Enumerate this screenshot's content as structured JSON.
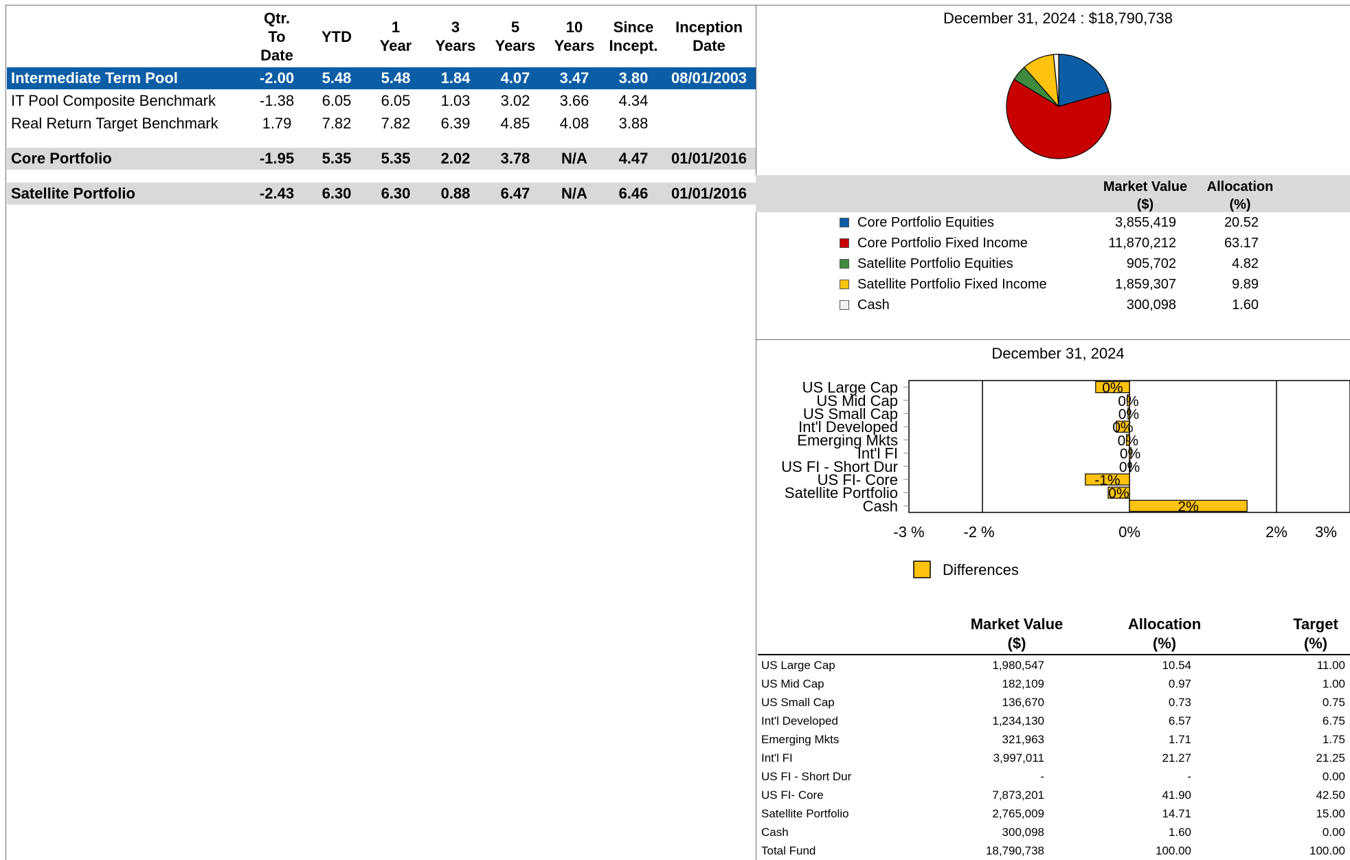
{
  "performance": {
    "headers": [
      {
        "lines": [
          "Qtr.",
          "To",
          "Date"
        ]
      },
      {
        "lines": [
          "YTD"
        ]
      },
      {
        "lines": [
          "1",
          "Year"
        ]
      },
      {
        "lines": [
          "3",
          "Years"
        ]
      },
      {
        "lines": [
          "5",
          "Years"
        ]
      },
      {
        "lines": [
          "10",
          "Years"
        ]
      },
      {
        "lines": [
          "Since",
          "Incept."
        ]
      },
      {
        "lines": [
          "Inception",
          "Date"
        ]
      }
    ],
    "rows": [
      {
        "name": "Intermediate Term Pool",
        "values": [
          "-2.00",
          "5.48",
          "5.48",
          "1.84",
          "4.07",
          "3.47",
          "3.80",
          "08/01/2003"
        ],
        "style": "pool"
      },
      {
        "name": "IT Pool Composite Benchmark",
        "values": [
          "-1.38",
          "6.05",
          "6.05",
          "1.03",
          "3.02",
          "3.66",
          "4.34",
          ""
        ],
        "style": "plain"
      },
      {
        "name": "Real Return Target Benchmark",
        "values": [
          "1.79",
          "7.82",
          "7.82",
          "6.39",
          "4.85",
          "4.08",
          "3.88",
          ""
        ],
        "style": "plain"
      },
      {
        "name": "Core Portfolio",
        "values": [
          "-1.95",
          "5.35",
          "5.35",
          "2.02",
          "3.78",
          "N/A",
          "4.47",
          "01/01/2016"
        ],
        "style": "gray"
      },
      {
        "name": "Satellite Portfolio",
        "values": [
          "-2.43",
          "6.30",
          "6.30",
          "0.88",
          "6.47",
          "N/A",
          "6.46",
          "01/01/2016"
        ],
        "style": "gray"
      }
    ]
  },
  "pie_title": "December 31, 2024 : $18,790,738",
  "allocation": {
    "header_mv": [
      "Market Value",
      "($)"
    ],
    "header_alloc": [
      "Allocation",
      "(%)"
    ],
    "items": [
      {
        "label": "Core Portfolio Equities",
        "value": "3,855,419",
        "alloc": "20.52",
        "color": "#0b5ea5"
      },
      {
        "label": "Core Portfolio Fixed Income",
        "value": "11,870,212",
        "alloc": "63.17",
        "color": "#c80000"
      },
      {
        "label": "Satellite Portfolio Equities",
        "value": "905,702",
        "alloc": "4.82",
        "color": "#3e8a3e"
      },
      {
        "label": "Satellite Portfolio Fixed Income",
        "value": "1,859,307",
        "alloc": "9.89",
        "color": "#ffc20e"
      },
      {
        "label": "Cash",
        "value": "300,098",
        "alloc": "1.60",
        "color": "#f2f2f2"
      }
    ]
  },
  "chart_data": {
    "type": "bar",
    "title": "December 31, 2024",
    "orientation": "horizontal",
    "categories": [
      "US Large Cap",
      "US Mid Cap",
      "US Small Cap",
      "Int'l Developed",
      "Emerging Mkts",
      "Int'l FI",
      "US FI - Short Dur",
      "US FI- Core",
      "Satellite Portfolio",
      "Cash"
    ],
    "series": [
      {
        "name": "Differences",
        "values": [
          -0.46,
          -0.03,
          -0.02,
          -0.18,
          -0.04,
          0.02,
          0.0,
          -0.6,
          -0.29,
          1.6
        ],
        "labels": [
          "0%",
          "0%",
          "0%",
          "0%",
          "0%",
          "0%",
          "0%",
          "-1%",
          "0%",
          "2%"
        ],
        "color": "#ffc20e"
      }
    ],
    "xlim": [
      -3,
      3
    ],
    "xticks": [
      "-3 %",
      "-2 %",
      "0%",
      "2%",
      "3%"
    ],
    "legend": "bottom-center",
    "grid": true
  },
  "detail": {
    "headers": [
      [
        "Market Value",
        "($)"
      ],
      [
        "Allocation",
        "(%)"
      ],
      [
        "Target",
        "(%)"
      ]
    ],
    "rows": [
      {
        "name": "US Large Cap",
        "mv": "1,980,547",
        "alloc": "10.54",
        "target": "11.00"
      },
      {
        "name": "US Mid Cap",
        "mv": "182,109",
        "alloc": "0.97",
        "target": "1.00"
      },
      {
        "name": "US Small Cap",
        "mv": "136,670",
        "alloc": "0.73",
        "target": "0.75"
      },
      {
        "name": "Int'l Developed",
        "mv": "1,234,130",
        "alloc": "6.57",
        "target": "6.75"
      },
      {
        "name": "Emerging Mkts",
        "mv": "321,963",
        "alloc": "1.71",
        "target": "1.75"
      },
      {
        "name": "Int'l FI",
        "mv": "3,997,011",
        "alloc": "21.27",
        "target": "21.25"
      },
      {
        "name": "US FI - Short Dur",
        "mv": "-",
        "alloc": "-",
        "target": "0.00"
      },
      {
        "name": "US FI- Core",
        "mv": "7,873,201",
        "alloc": "41.90",
        "target": "42.50"
      },
      {
        "name": "Satellite Portfolio",
        "mv": "2,765,009",
        "alloc": "14.71",
        "target": "15.00"
      },
      {
        "name": "Cash",
        "mv": "300,098",
        "alloc": "1.60",
        "target": "0.00"
      },
      {
        "name": "Total Fund",
        "mv": "18,790,738",
        "alloc": "100.00",
        "target": "100.00"
      }
    ]
  }
}
